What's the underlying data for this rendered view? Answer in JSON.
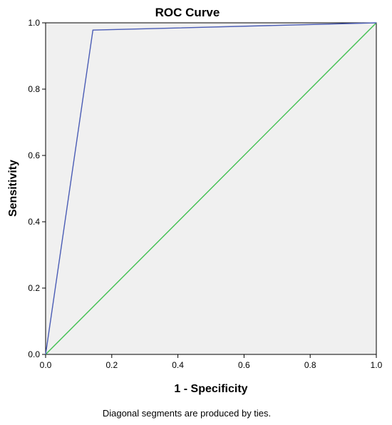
{
  "chart_data": {
    "type": "line",
    "title": "ROC Curve",
    "xlabel": "1 - Specificity",
    "ylabel": "Sensitivity",
    "xlim": [
      0,
      1
    ],
    "ylim": [
      0,
      1
    ],
    "x_ticks": [
      "0.0",
      "0.2",
      "0.4",
      "0.6",
      "0.8",
      "1.0"
    ],
    "y_ticks": [
      "0.0",
      "0.2",
      "0.4",
      "0.6",
      "0.8",
      "1.0"
    ],
    "grid": false,
    "series": [
      {
        "color": "#4a5cb5",
        "points": [
          [
            0.0,
            0.0
          ],
          [
            0.143,
            0.978
          ],
          [
            1.0,
            1.0
          ]
        ]
      },
      {
        "color": "#40c050",
        "points": [
          [
            0.0,
            0.0
          ],
          [
            1.0,
            1.0
          ]
        ]
      }
    ],
    "plot_background": "#f0f0f0",
    "footnote": "Diagonal segments are produced by ties."
  }
}
